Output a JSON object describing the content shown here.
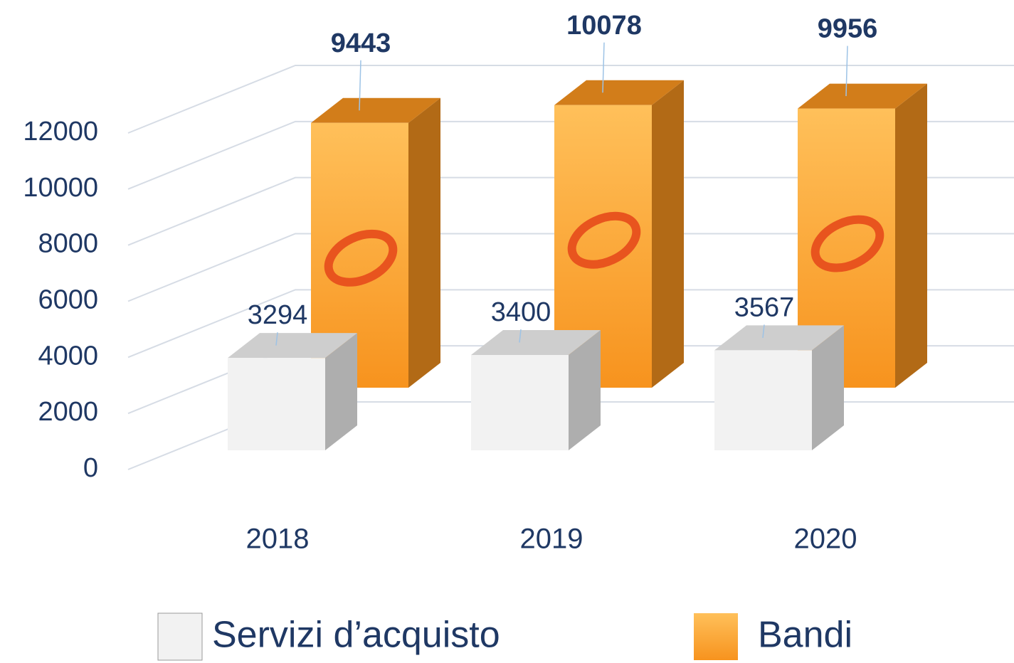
{
  "chart_data": {
    "type": "bar3d",
    "categories": [
      "2018",
      "2019",
      "2020"
    ],
    "series": [
      {
        "name": "Servizi d’acquisto",
        "color": "#f2f2f2",
        "values": [
          3294,
          3400,
          3567
        ]
      },
      {
        "name": "Bandi",
        "color": "#f7931e",
        "values": [
          9443,
          10078,
          9956
        ]
      }
    ],
    "ylim": [
      0,
      12000
    ],
    "yticks": [
      0,
      2000,
      4000,
      6000,
      8000,
      10000,
      12000
    ],
    "grid": true
  }
}
